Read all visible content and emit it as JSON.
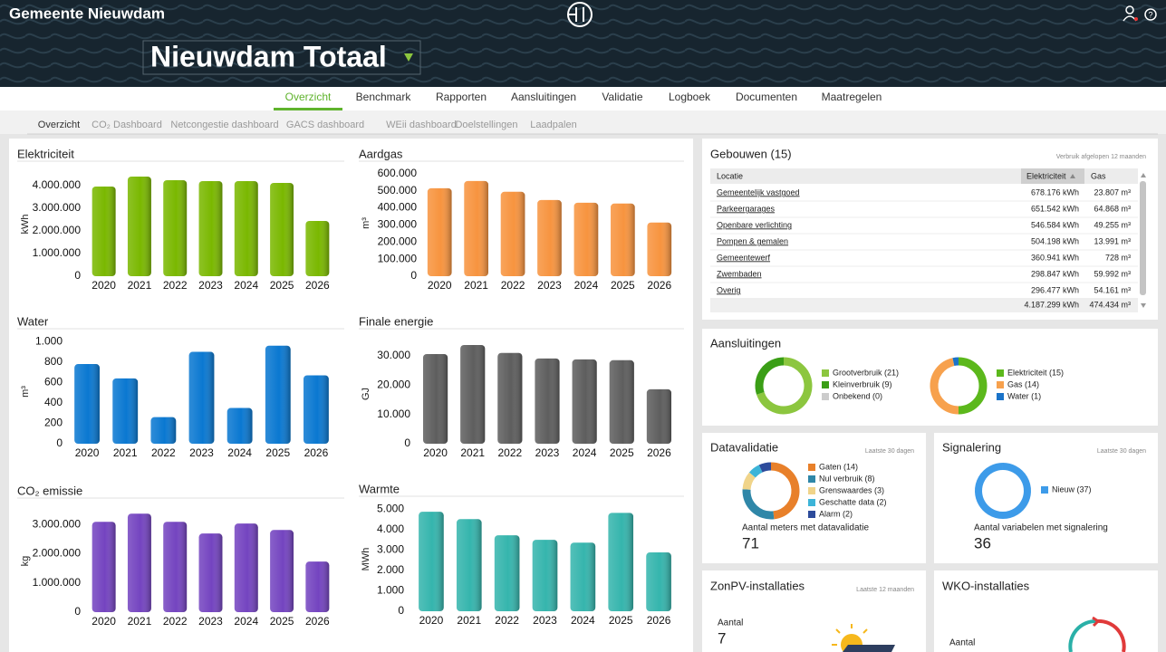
{
  "header": {
    "organization": "Gemeente Nieuwdam",
    "title": "Nieuwdam Totaal"
  },
  "nav": [
    "Overzicht",
    "Benchmark",
    "Rapporten",
    "Aansluitingen",
    "Validatie",
    "Logboek",
    "Documenten",
    "Maatregelen"
  ],
  "subnav": [
    "Overzicht",
    "CO₂ Dashboard",
    "Netcongestie dashboard",
    "GACS dashboard",
    "WEii dashboard",
    "Doelstellingen",
    "Laadpalen"
  ],
  "chart_data": [
    {
      "type": "bar",
      "title": "Elektriciteit",
      "y_label": "kWh",
      "color": "#7ab800",
      "categories": [
        "2020",
        "2021",
        "2022",
        "2023",
        "2024",
        "2025",
        "2026"
      ],
      "values": [
        3960000,
        4400000,
        4240000,
        4200000,
        4200000,
        4120000,
        2440000
      ],
      "ylim": [
        0,
        4600000
      ],
      "yticks": [
        0,
        {
          "value": 1000000,
          "label": "1.000.000"
        },
        {
          "value": 2000000,
          "label": "2.000.000"
        },
        {
          "value": 3000000,
          "label": "3.000.000"
        },
        {
          "value": 4000000,
          "label": "4.000.000"
        }
      ]
    },
    {
      "type": "bar",
      "title": "Aardgas",
      "y_label": "m³",
      "color": "#f7943f",
      "categories": [
        "2020",
        "2021",
        "2022",
        "2023",
        "2024",
        "2025",
        "2026"
      ],
      "values": [
        515000,
        557000,
        494000,
        446000,
        430000,
        425000,
        314000
      ],
      "ylim": [
        0,
        620000
      ],
      "yticks": [
        0,
        {
          "value": 100000,
          "label": "100.000"
        },
        {
          "value": 200000,
          "label": "200.000"
        },
        {
          "value": 300000,
          "label": "300.000"
        },
        {
          "value": 400000,
          "label": "400.000"
        },
        {
          "value": 500000,
          "label": "500.000"
        },
        {
          "value": 600000,
          "label": "600.000"
        }
      ]
    },
    {
      "type": "bar",
      "title": "Water",
      "y_label": "m³",
      "color": "#0a78d1",
      "categories": [
        "2020",
        "2021",
        "2022",
        "2023",
        "2024",
        "2025",
        "2026"
      ],
      "values": [
        780,
        640,
        260,
        900,
        350,
        960,
        670
      ],
      "ylim": [
        0,
        1020
      ],
      "yticks": [
        0,
        200,
        400,
        600,
        800,
        {
          "value": 1000,
          "label": "1.000"
        }
      ]
    },
    {
      "type": "bar",
      "title": "Finale energie",
      "y_label": "GJ",
      "color": "#5e5e5e",
      "categories": [
        "2020",
        "2021",
        "2022",
        "2023",
        "2024",
        "2025",
        "2026"
      ],
      "values": [
        30600,
        33700,
        31000,
        29100,
        28800,
        28500,
        18600
      ],
      "ylim": [
        0,
        34000
      ],
      "yticks": [
        0,
        {
          "value": 10000,
          "label": "10.000"
        },
        {
          "value": 20000,
          "label": "20.000"
        },
        {
          "value": 30000,
          "label": "30.000"
        }
      ]
    },
    {
      "type": "bar",
      "title": "CO₂ emissie",
      "y_label": "kg",
      "color": "#7444c0",
      "categories": [
        "2020",
        "2021",
        "2022",
        "2023",
        "2024",
        "2025",
        "2026"
      ],
      "values": [
        3090000,
        3370000,
        3090000,
        2690000,
        3030000,
        2810000,
        1730000
      ],
      "ylim": [
        0,
        3500000
      ],
      "yticks": [
        0,
        {
          "value": 1000000,
          "label": "1.000.000"
        },
        {
          "value": 2000000,
          "label": "2.000.000"
        },
        {
          "value": 3000000,
          "label": "3.000.000"
        }
      ]
    },
    {
      "type": "bar",
      "title": "Warmte",
      "y_label": "MWh",
      "color": "#35b5ad",
      "categories": [
        "2020",
        "2021",
        "2022",
        "2023",
        "2024",
        "2025",
        "2026"
      ],
      "values": [
        4870,
        4510,
        3720,
        3500,
        3360,
        4820,
        2880
      ],
      "ylim": [
        0,
        5100
      ],
      "yticks": [
        0,
        {
          "value": 1000,
          "label": "1.000"
        },
        {
          "value": 2000,
          "label": "2.000"
        },
        {
          "value": 3000,
          "label": "3.000"
        },
        {
          "value": 4000,
          "label": "4.000"
        },
        {
          "value": 5000,
          "label": "5.000"
        }
      ]
    }
  ],
  "buildings": {
    "title": "Gebouwen (15)",
    "note": "Verbruik afgelopen 12 maanden",
    "columns": [
      "Locatie",
      "Elektriciteit",
      "Gas"
    ],
    "rows": [
      [
        "Gemeentelijk vastgoed",
        "678.176 kWh",
        "23.807 m³"
      ],
      [
        "Parkeergarages",
        "651.542 kWh",
        "64.868 m³"
      ],
      [
        "Openbare verlichting",
        "546.584 kWh",
        "49.255 m³"
      ],
      [
        "Pompen & gemalen",
        "504.198 kWh",
        "13.991 m³"
      ],
      [
        "Gemeentewerf",
        "360.941 kWh",
        "728 m³"
      ],
      [
        "Zwembaden",
        "298.847 kWh",
        "59.992 m³"
      ],
      [
        "Overig",
        "296.477 kWh",
        "54.161 m³"
      ]
    ],
    "total": [
      "4.187.299 kWh",
      "474.434 m³"
    ]
  },
  "connections": {
    "title": "Aansluitingen",
    "donuts": [
      {
        "type": "donut",
        "categories": [
          "Grootverbruik (21)",
          "Kleinverbruik (9)",
          "Onbekend (0)"
        ],
        "values": [
          21,
          9,
          0
        ],
        "colors": [
          "#8cc63f",
          "#3a9e16",
          "#cccccc"
        ]
      },
      {
        "type": "donut",
        "categories": [
          "Elektriciteit (15)",
          "Gas (14)",
          "Water (1)"
        ],
        "values": [
          15,
          14,
          1
        ],
        "colors": [
          "#5cb81c",
          "#f7a14d",
          "#1a73c9"
        ]
      }
    ]
  },
  "validation": {
    "title": "Datavalidatie",
    "note": "Laatste 30 dagen",
    "donut": {
      "type": "donut",
      "categories": [
        "Gaten (14)",
        "Nul verbruik (8)",
        "Grenswaardes (3)",
        "Geschatte data (2)",
        "Alarm (2)"
      ],
      "values": [
        14,
        8,
        3,
        2,
        2
      ],
      "colors": [
        "#e8802a",
        "#2f87a8",
        "#f0d48a",
        "#3cb4d8",
        "#2d4b9b"
      ]
    },
    "caption": "Aantal meters met datavalidatie",
    "count": 71
  },
  "signals": {
    "title": "Signalering",
    "note": "Laatste 30 dagen",
    "donut": {
      "type": "donut",
      "categories": [
        "Nieuw (37)"
      ],
      "values": [
        37
      ],
      "colors": [
        "#3d9be9"
      ]
    },
    "caption": "Aantal variabelen met signalering",
    "count": 36
  },
  "solar": {
    "title": "ZonPV-installaties",
    "note": "Laatste 12 maanden",
    "caption": "Aantal",
    "count": 7
  },
  "wko": {
    "title": "WKO-installaties",
    "caption": "Aantal"
  }
}
